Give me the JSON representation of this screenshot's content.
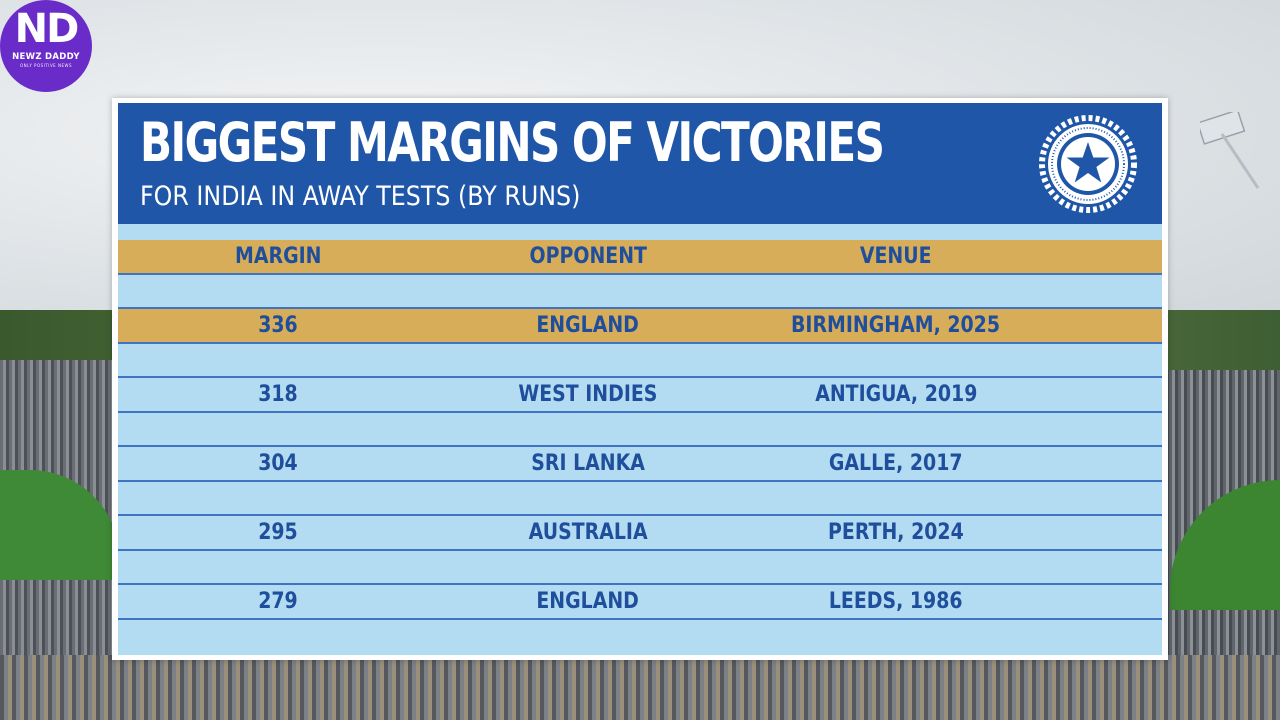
{
  "branding": {
    "logo_mark": "ND",
    "logo_name": "NEWZ DADDY",
    "logo_tagline": "ONLY POSITIVE NEWS",
    "logo_color": "#6a2cc8"
  },
  "board": {
    "title": "BIGGEST MARGINS OF VICTORIES",
    "subtitle": "FOR INDIA IN AWAY TESTS (BY RUNS)",
    "emblem_icon": "bcci-star-emblem-icon",
    "header_color": "#1f56a8",
    "row_color": "#b3dcf2",
    "highlight_color": "#d7ad59",
    "text_color": "#1f4f9c"
  },
  "table": {
    "columns": [
      "MARGIN",
      "OPPONENT",
      "VENUE"
    ],
    "rows": [
      {
        "margin": "336",
        "opponent": "ENGLAND",
        "venue": "BIRMINGHAM, 2025",
        "highlight": true
      },
      {
        "margin": "318",
        "opponent": "WEST INDIES",
        "venue": "ANTIGUA, 2019",
        "highlight": false
      },
      {
        "margin": "304",
        "opponent": "SRI LANKA",
        "venue": "GALLE, 2017",
        "highlight": false
      },
      {
        "margin": "295",
        "opponent": "AUSTRALIA",
        "venue": "PERTH, 2024",
        "highlight": false
      },
      {
        "margin": "279",
        "opponent": "ENGLAND",
        "venue": "LEEDS, 1986",
        "highlight": false
      }
    ]
  }
}
